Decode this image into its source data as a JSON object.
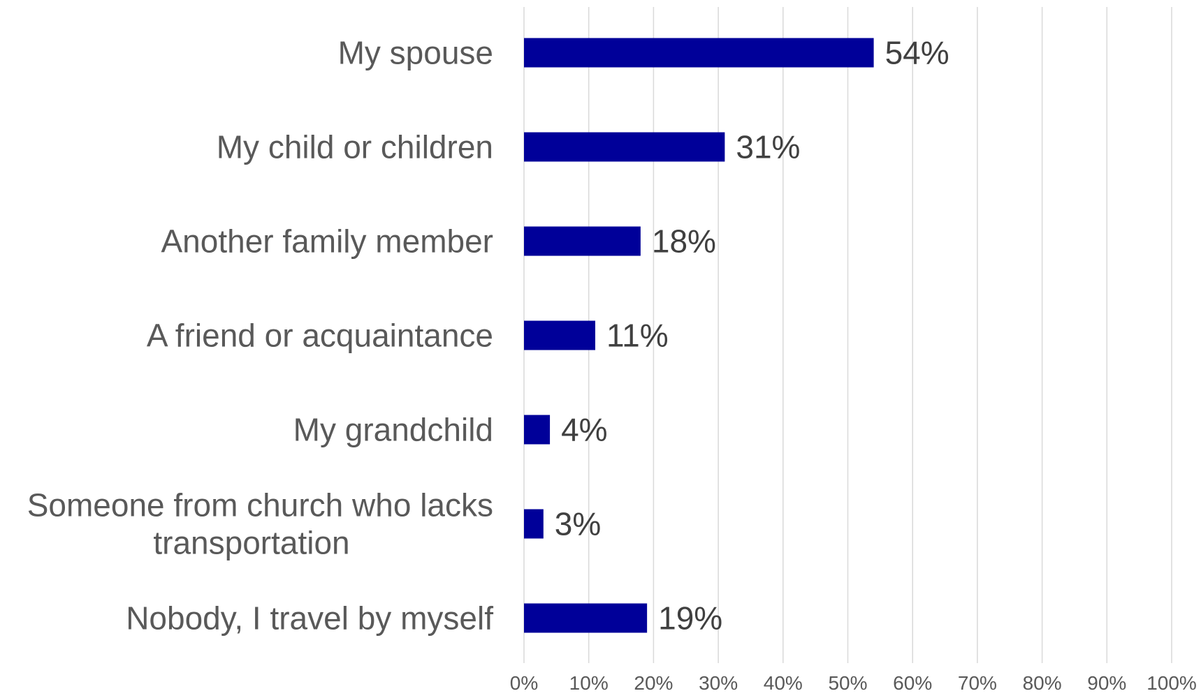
{
  "chart_data": {
    "type": "bar",
    "orientation": "horizontal",
    "title": "",
    "xlabel": "",
    "ylabel": "",
    "categories": [
      "My spouse",
      "My child or children",
      "Another family member",
      "A friend or acquaintance",
      "My grandchild",
      "Someone from church who lacks transportation",
      "Nobody, I travel by myself"
    ],
    "values": [
      54,
      31,
      18,
      11,
      4,
      3,
      19
    ],
    "data_labels": [
      "54%",
      "31%",
      "18%",
      "11%",
      "4%",
      "3%",
      "19%"
    ],
    "xlim": [
      0,
      100
    ],
    "x_ticks": [
      "0%",
      "10%",
      "20%",
      "30%",
      "40%",
      "50%",
      "60%",
      "70%",
      "80%",
      "90%",
      "100%"
    ],
    "grid": true,
    "legend": "none",
    "bar_color": "#000099"
  }
}
